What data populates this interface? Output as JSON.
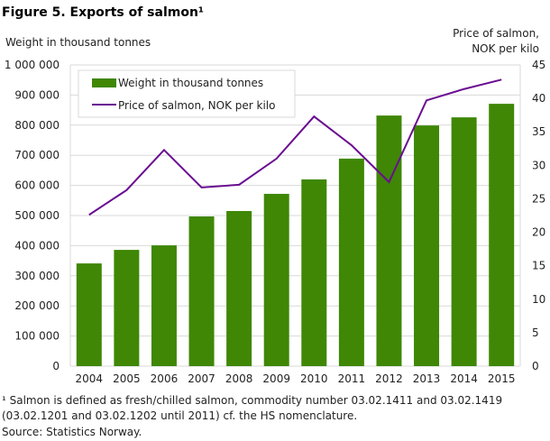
{
  "chart_data": {
    "type": "bar",
    "title": "Figure 5. Exports of salmon¹",
    "categories": [
      "2004",
      "2005",
      "2006",
      "2007",
      "2008",
      "2009",
      "2010",
      "2011",
      "2012",
      "2013",
      "2014",
      "2015"
    ],
    "series": [
      {
        "name": "Weight in thousand tonnes",
        "type": "bar",
        "axis": "left",
        "color": "#3f8705",
        "values": [
          341000,
          386000,
          401000,
          497000,
          515000,
          572000,
          620000,
          689000,
          832000,
          799000,
          826000,
          871000
        ]
      },
      {
        "name": "Price of salmon, NOK per kilo",
        "type": "line",
        "axis": "right",
        "color": "#6a0d91",
        "values": [
          22.6,
          26.3,
          32.3,
          26.7,
          27.1,
          31.0,
          37.3,
          33.0,
          27.5,
          39.7,
          41.4,
          42.8
        ]
      }
    ],
    "ylabel": "Weight in thousand tonnes",
    "ylabel_right": [
      "Price of salmon,",
      "NOK per kilo"
    ],
    "ylim": [
      0,
      1000000
    ],
    "ylim_right": [
      0,
      45
    ],
    "yticks": [
      "0",
      "100 000",
      "200 000",
      "300 000",
      "400 000",
      "500 000",
      "600 000",
      "700 000",
      "800 000",
      "900 000",
      "1 000 000"
    ],
    "yticks_right": [
      "0",
      "5",
      "10",
      "15",
      "20",
      "25",
      "30",
      "35",
      "40",
      "45"
    ],
    "grid": true,
    "legend_position": "top-left",
    "footnote": [
      "¹ Salmon is defined as fresh/chilled salmon, commodity number 03.02.1411 and 03.02.1419",
      "(03.02.1201 and 03.02.1202 until 2011) cf. the HS nomenclature."
    ],
    "source": "Source: Statistics Norway."
  }
}
